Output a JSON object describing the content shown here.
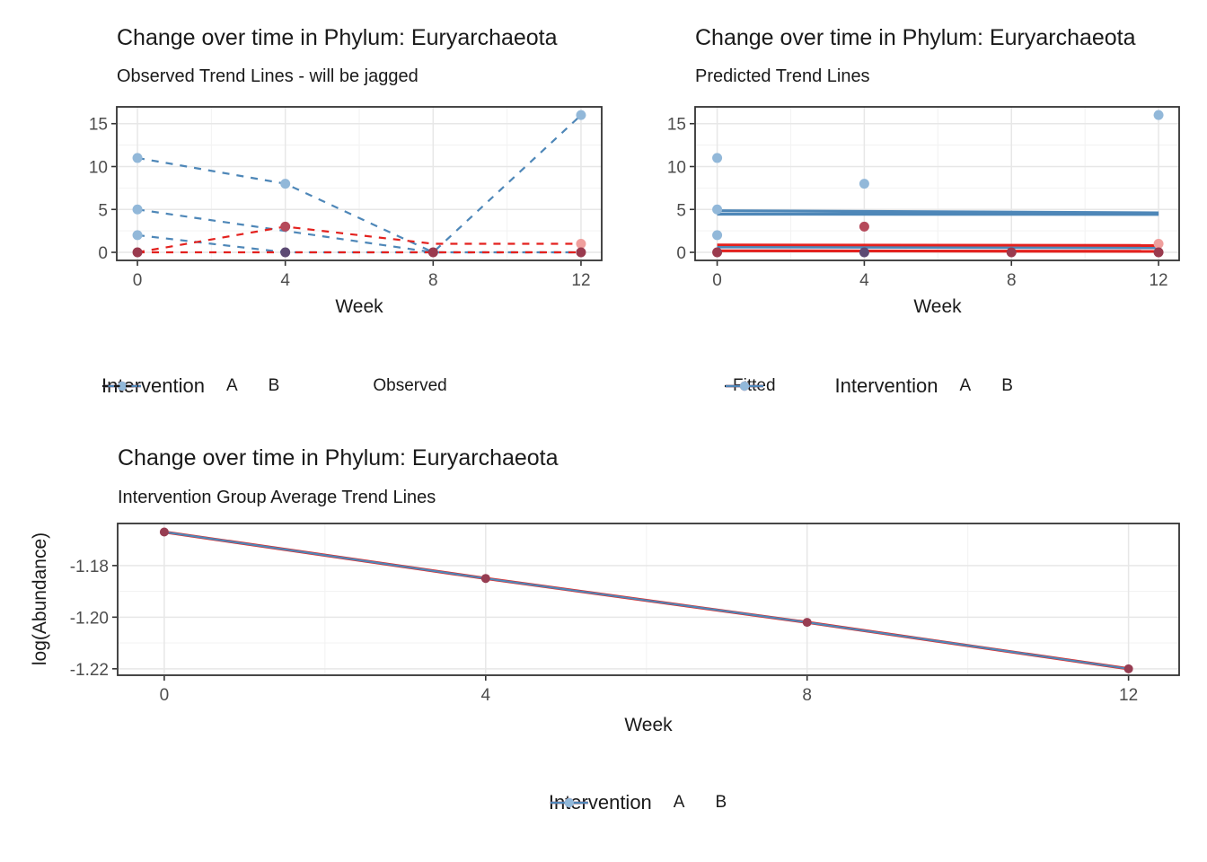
{
  "colors": {
    "red": "#e3211e",
    "blue": "#4e87b8",
    "point_B": "#92b8d9",
    "point_A_dark": "#b5495a",
    "point_dark": "#9a3a4e",
    "point_purple": "#5c4a73",
    "point_pink": "#ef9f9d",
    "point_avg": "#973d52",
    "grid_major": "#e7e7e7",
    "grid_minor": "#f3f3f3",
    "panel_border": "#333333",
    "axis_text": "#4d4d4d",
    "key_black": "#1a1a1a",
    "legend_dot_A": "#d9565e",
    "legend_dot_B": "#92b8d9"
  },
  "chart_data": [
    {
      "type": "line",
      "title": "Change over time in Phylum: Euryarchaeota",
      "subtitle": "Observed Trend Lines - will be jagged",
      "xlabel": "Week",
      "ylabel": "",
      "x_ticks": [
        0,
        4,
        8,
        12
      ],
      "x_tick_labels": [
        "0",
        "4",
        "8",
        "12"
      ],
      "y_ticks": [
        0,
        5,
        10,
        15
      ],
      "y_tick_labels": [
        "0",
        "5",
        "10",
        "15"
      ],
      "xlim": [
        -0.56,
        12.56
      ],
      "ylim": [
        -0.94,
        16.96
      ],
      "grid": true,
      "legend_position": "bottom",
      "series": [
        {
          "name": "B-subject-1",
          "group": "B",
          "color": "blue",
          "dash": true,
          "x": [
            0,
            4,
            8,
            12
          ],
          "y": [
            11,
            8,
            0,
            16
          ]
        },
        {
          "name": "B-subject-2",
          "group": "B",
          "color": "blue",
          "dash": true,
          "x": [
            0,
            8,
            12
          ],
          "y": [
            5,
            0,
            0
          ]
        },
        {
          "name": "B-subject-3",
          "group": "B",
          "color": "blue",
          "dash": true,
          "x": [
            0,
            4,
            8,
            12
          ],
          "y": [
            2,
            0,
            0,
            0
          ]
        },
        {
          "name": "A-subject-1",
          "group": "A",
          "color": "red",
          "dash": true,
          "x": [
            0,
            4,
            8,
            12
          ],
          "y": [
            0,
            3,
            1,
            1
          ]
        },
        {
          "name": "A-subject-2",
          "group": "A",
          "color": "red",
          "dash": true,
          "x": [
            0,
            4,
            8,
            12
          ],
          "y": [
            0,
            0,
            0,
            0
          ]
        }
      ],
      "points": [
        {
          "x": 0,
          "y": 11,
          "c": "point_B"
        },
        {
          "x": 0,
          "y": 5,
          "c": "point_B"
        },
        {
          "x": 0,
          "y": 2,
          "c": "point_B"
        },
        {
          "x": 0,
          "y": 0,
          "c": "point_dark"
        },
        {
          "x": 4,
          "y": 8,
          "c": "point_B"
        },
        {
          "x": 4,
          "y": 3,
          "c": "point_A_dark"
        },
        {
          "x": 4,
          "y": 0,
          "c": "point_purple"
        },
        {
          "x": 8,
          "y": 0,
          "c": "point_dark"
        },
        {
          "x": 12,
          "y": 16,
          "c": "point_B"
        },
        {
          "x": 12,
          "y": 1,
          "c": "point_pink"
        },
        {
          "x": 12,
          "y": 0,
          "c": "point_dark"
        }
      ],
      "legend": {
        "title": "Intervention",
        "items": [
          {
            "label": "A",
            "key": "A"
          },
          {
            "label": "B",
            "key": "B"
          }
        ],
        "extra_label": "Observed",
        "extra_style": "dashed"
      }
    },
    {
      "type": "line",
      "title": "Change over time in Phylum: Euryarchaeota",
      "subtitle": "Predicted Trend Lines",
      "xlabel": "Week",
      "ylabel": "",
      "x_ticks": [
        0,
        4,
        8,
        12
      ],
      "x_tick_labels": [
        "0",
        "4",
        "8",
        "12"
      ],
      "y_ticks": [
        0,
        5,
        10,
        15
      ],
      "y_tick_labels": [
        "0",
        "5",
        "10",
        "15"
      ],
      "xlim": [
        -0.6,
        12.56
      ],
      "ylim": [
        -0.94,
        16.96
      ],
      "grid": true,
      "legend_position": "bottom",
      "series": [
        {
          "name": "fitted-B-1",
          "group": "B",
          "color": "blue",
          "dash": false,
          "w": 3.2,
          "x": [
            0,
            12
          ],
          "y": [
            4.85,
            4.6
          ]
        },
        {
          "name": "fitted-B-2",
          "group": "B",
          "color": "blue",
          "dash": false,
          "w": 3.2,
          "x": [
            0,
            12
          ],
          "y": [
            4.45,
            4.42
          ]
        },
        {
          "name": "fitted-A-1",
          "group": "A",
          "color": "red",
          "dash": false,
          "w": 3.2,
          "x": [
            0,
            12
          ],
          "y": [
            0.85,
            0.8
          ]
        },
        {
          "name": "fitted-B-3",
          "group": "B",
          "color": "blue",
          "dash": false,
          "w": 2.6,
          "x": [
            0,
            12
          ],
          "y": [
            0.6,
            0.5
          ]
        },
        {
          "name": "fitted-A-2",
          "group": "A",
          "color": "red",
          "dash": false,
          "w": 3.2,
          "x": [
            0,
            12
          ],
          "y": [
            0.18,
            0.12
          ]
        }
      ],
      "points": [
        {
          "x": 0,
          "y": 11,
          "c": "point_B"
        },
        {
          "x": 0,
          "y": 5,
          "c": "point_B"
        },
        {
          "x": 0,
          "y": 2,
          "c": "point_B"
        },
        {
          "x": 0,
          "y": 0,
          "c": "point_dark"
        },
        {
          "x": 4,
          "y": 8,
          "c": "point_B"
        },
        {
          "x": 4,
          "y": 3,
          "c": "point_A_dark"
        },
        {
          "x": 4,
          "y": 0,
          "c": "point_purple"
        },
        {
          "x": 8,
          "y": 0,
          "c": "point_dark"
        },
        {
          "x": 12,
          "y": 16,
          "c": "point_B"
        },
        {
          "x": 12,
          "y": 1,
          "c": "point_pink"
        },
        {
          "x": 12,
          "y": 0,
          "c": "point_dark"
        }
      ],
      "legend": {
        "title": "Intervention",
        "items": [
          {
            "label": "A",
            "key": "A"
          },
          {
            "label": "B",
            "key": "B"
          }
        ],
        "extra_label": "Fitted",
        "extra_style": "solid"
      }
    },
    {
      "type": "line",
      "title": "Change over time in Phylum: Euryarchaeota",
      "subtitle": "Intervention Group Average Trend Lines",
      "xlabel": "Week",
      "ylabel": "log(Abundance)",
      "x_ticks": [
        0,
        4,
        8,
        12
      ],
      "x_tick_labels": [
        "0",
        "4",
        "8",
        "12"
      ],
      "y_ticks": [
        -1.18,
        -1.2,
        -1.22
      ],
      "y_tick_labels": [
        "-1.18",
        "-1.20",
        "-1.22"
      ],
      "xlim": [
        -0.58,
        12.63
      ],
      "ylim": [
        -1.2225,
        -1.1637
      ],
      "grid": true,
      "legend_position": "bottom",
      "series": [
        {
          "name": "group-average-A",
          "group": "A",
          "color": "red",
          "dash": false,
          "w": 3.4,
          "x": [
            0,
            4,
            8,
            12
          ],
          "y": [
            -1.167,
            -1.185,
            -1.202,
            -1.22
          ]
        },
        {
          "name": "group-average-B",
          "group": "B",
          "color": "blue",
          "dash": false,
          "w": 2.2,
          "x": [
            0,
            4,
            8,
            12
          ],
          "y": [
            -1.167,
            -1.185,
            -1.202,
            -1.22
          ]
        }
      ],
      "points": [
        {
          "x": 0,
          "y": -1.167,
          "c": "point_avg"
        },
        {
          "x": 4,
          "y": -1.185,
          "c": "point_avg"
        },
        {
          "x": 8,
          "y": -1.202,
          "c": "point_avg"
        },
        {
          "x": 12,
          "y": -1.22,
          "c": "point_avg"
        }
      ],
      "legend": {
        "title": "Intervention",
        "items": [
          {
            "label": "A",
            "key": "A"
          },
          {
            "label": "B",
            "key": "B"
          }
        ]
      }
    }
  ]
}
